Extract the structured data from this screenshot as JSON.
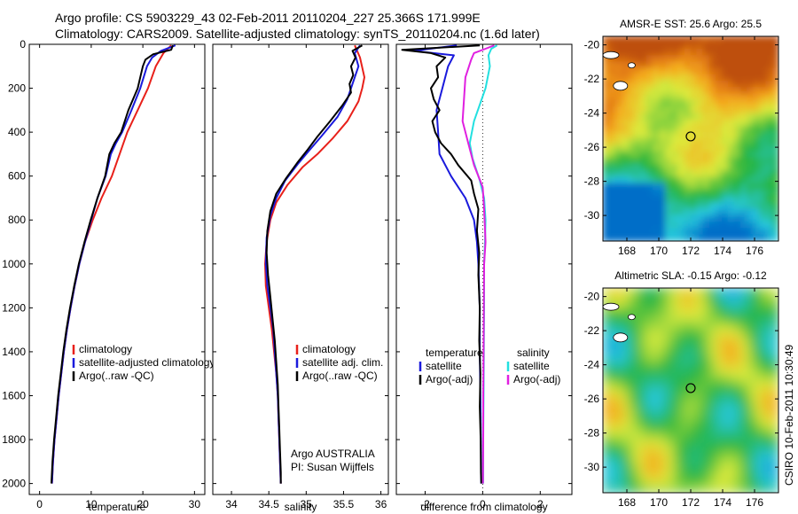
{
  "header": {
    "line1": "Argo profile: CS 5903229_43 02-Feb-2011 20110204_227 25.366S 171.999E",
    "line2": "Climatology: CARS2009. Satellite-adjusted climatology: synTS_20110204.nc (1.6d later)"
  },
  "footer": {
    "credit": "CSIRO 10-Feb-2011 10:30:49"
  },
  "colors": {
    "climatology": "#e8201a",
    "satellite": "#1a1adc",
    "argo": "#000000",
    "cyan": "#22e0e0",
    "magenta": "#e020e0"
  },
  "chart_data": [
    {
      "type": "line",
      "id": "temperature",
      "xlabel": "temperature",
      "xlim": [
        -2,
        32
      ],
      "ylim": [
        0,
        2050
      ],
      "xticks": [
        0,
        10,
        20,
        30
      ],
      "yticks": [
        0,
        200,
        400,
        600,
        800,
        1000,
        1200,
        1400,
        1600,
        1800,
        2000
      ],
      "y_reversed": true,
      "legend": [
        "climatology",
        "satellite-adjusted climatology",
        "Argo(..raw -QC)"
      ],
      "series": [
        {
          "name": "climatology",
          "color": "#e8201a",
          "points": [
            [
              25.5,
              5
            ],
            [
              24,
              40
            ],
            [
              22.5,
              100
            ],
            [
              21,
              200
            ],
            [
              19,
              300
            ],
            [
              17,
              400
            ],
            [
              15.5,
              500
            ],
            [
              14,
              600
            ],
            [
              12,
              700
            ],
            [
              10.3,
              800
            ],
            [
              8.8,
              900
            ],
            [
              7.7,
              1000
            ],
            [
              6.8,
              1100
            ],
            [
              6,
              1200
            ],
            [
              5.3,
              1300
            ],
            [
              4.7,
              1400
            ],
            [
              4.2,
              1500
            ],
            [
              3.7,
              1600
            ],
            [
              3.3,
              1700
            ],
            [
              2.9,
              1800
            ],
            [
              2.6,
              1900
            ],
            [
              2.4,
              2000
            ]
          ]
        },
        {
          "name": "satellite-adjusted climatology",
          "color": "#1a1adc",
          "points": [
            [
              26.3,
              5
            ],
            [
              23.5,
              30
            ],
            [
              21.8,
              60
            ],
            [
              20.8,
              100
            ],
            [
              19.5,
              200
            ],
            [
              17.8,
              300
            ],
            [
              16,
              400
            ],
            [
              14.8,
              450
            ],
            [
              13.8,
              500
            ],
            [
              12.8,
              600
            ],
            [
              11.2,
              700
            ],
            [
              10,
              800
            ],
            [
              8.8,
              900
            ],
            [
              7.7,
              1000
            ],
            [
              6.8,
              1100
            ],
            [
              6,
              1200
            ],
            [
              5.3,
              1300
            ],
            [
              4.7,
              1400
            ],
            [
              4.2,
              1500
            ],
            [
              3.7,
              1600
            ],
            [
              3.3,
              1700
            ],
            [
              2.9,
              1800
            ],
            [
              2.6,
              1900
            ],
            [
              2.4,
              2000
            ]
          ]
        },
        {
          "name": "Argo(..raw -QC)",
          "color": "#000000",
          "points": [
            [
              25.8,
              5
            ],
            [
              25.5,
              25
            ],
            [
              22,
              45
            ],
            [
              20.5,
              70
            ],
            [
              20,
              100
            ],
            [
              19,
              200
            ],
            [
              17.2,
              300
            ],
            [
              15.8,
              400
            ],
            [
              14.5,
              450
            ],
            [
              13.5,
              500
            ],
            [
              12.7,
              600
            ],
            [
              11.2,
              700
            ],
            [
              9.9,
              800
            ],
            [
              8.7,
              900
            ],
            [
              7.6,
              1000
            ],
            [
              6.7,
              1100
            ],
            [
              5.9,
              1200
            ],
            [
              5.2,
              1300
            ],
            [
              4.6,
              1400
            ],
            [
              4.1,
              1500
            ],
            [
              3.6,
              1600
            ],
            [
              3.2,
              1700
            ],
            [
              2.8,
              1800
            ],
            [
              2.5,
              1900
            ],
            [
              2.3,
              2000
            ]
          ]
        }
      ]
    },
    {
      "type": "line",
      "id": "salinity",
      "xlabel": "salinity",
      "xlim": [
        33.75,
        36.1
      ],
      "ylim": [
        0,
        2050
      ],
      "xticks": [
        34,
        34.5,
        35,
        35.5,
        36
      ],
      "y_reversed": true,
      "legend": [
        "climatology",
        "satellite adj. clim.",
        "Argo(..raw -QC)"
      ],
      "annotation": [
        "Argo AUSTRALIA",
        "PI: Susan Wijffels"
      ],
      "series": [
        {
          "name": "climatology",
          "color": "#e8201a",
          "points": [
            [
              35.65,
              5
            ],
            [
              35.72,
              60
            ],
            [
              35.78,
              150
            ],
            [
              35.75,
              200
            ],
            [
              35.7,
              260
            ],
            [
              35.55,
              350
            ],
            [
              35.35,
              430
            ],
            [
              35.15,
              500
            ],
            [
              34.95,
              560
            ],
            [
              34.75,
              640
            ],
            [
              34.6,
              720
            ],
            [
              34.52,
              800
            ],
            [
              34.47,
              900
            ],
            [
              34.45,
              1000
            ],
            [
              34.46,
              1100
            ],
            [
              34.5,
              1200
            ],
            [
              34.54,
              1300
            ],
            [
              34.57,
              1400
            ],
            [
              34.6,
              1500
            ],
            [
              34.62,
              1600
            ],
            [
              34.63,
              1700
            ],
            [
              34.64,
              1800
            ],
            [
              34.65,
              1900
            ],
            [
              34.66,
              2000
            ]
          ]
        },
        {
          "name": "satellite adj. clim.",
          "color": "#1a1adc",
          "points": [
            [
              35.72,
              5
            ],
            [
              35.65,
              40
            ],
            [
              35.7,
              100
            ],
            [
              35.65,
              150
            ],
            [
              35.55,
              250
            ],
            [
              35.42,
              330
            ],
            [
              35.2,
              420
            ],
            [
              35.05,
              480
            ],
            [
              34.9,
              540
            ],
            [
              34.72,
              620
            ],
            [
              34.6,
              700
            ],
            [
              34.52,
              780
            ],
            [
              34.47,
              880
            ],
            [
              34.46,
              1000
            ],
            [
              34.48,
              1100
            ],
            [
              34.52,
              1200
            ],
            [
              34.56,
              1300
            ],
            [
              34.58,
              1400
            ],
            [
              34.6,
              1500
            ],
            [
              34.62,
              1600
            ],
            [
              34.63,
              1700
            ],
            [
              34.64,
              1800
            ],
            [
              34.65,
              1900
            ],
            [
              34.66,
              2000
            ]
          ]
        },
        {
          "name": "Argo(..raw -QC)",
          "color": "#000000",
          "points": [
            [
              35.75,
              5
            ],
            [
              35.62,
              30
            ],
            [
              35.66,
              60
            ],
            [
              35.6,
              100
            ],
            [
              35.63,
              140
            ],
            [
              35.58,
              180
            ],
            [
              35.6,
              220
            ],
            [
              35.48,
              280
            ],
            [
              35.32,
              350
            ],
            [
              35.15,
              420
            ],
            [
              35.02,
              480
            ],
            [
              34.88,
              540
            ],
            [
              34.73,
              610
            ],
            [
              34.6,
              680
            ],
            [
              34.52,
              760
            ],
            [
              34.48,
              850
            ],
            [
              34.47,
              950
            ],
            [
              34.49,
              1050
            ],
            [
              34.52,
              1150
            ],
            [
              34.55,
              1250
            ],
            [
              34.58,
              1350
            ],
            [
              34.6,
              1450
            ],
            [
              34.62,
              1550
            ],
            [
              34.63,
              1650
            ],
            [
              34.64,
              1750
            ],
            [
              34.65,
              1850
            ],
            [
              34.66,
              1950
            ],
            [
              34.66,
              2000
            ]
          ]
        }
      ]
    },
    {
      "type": "line",
      "id": "difference",
      "xlabel": "difference from climatology",
      "xlim": [
        -3,
        3.1
      ],
      "ylim": [
        0,
        2050
      ],
      "xticks": [
        -2,
        0,
        2
      ],
      "y_reversed": true,
      "legend_left_title": "temperature",
      "legend_right_title": "salinity",
      "legend_left": [
        "satellite",
        "Argo(-adj)"
      ],
      "legend_right": [
        "satellite",
        "Argo(-adj)"
      ],
      "series": [
        {
          "name": "temperature satellite",
          "color": "#1a1adc",
          "points": [
            [
              -0.9,
              5
            ],
            [
              -2.4,
              30
            ],
            [
              -1,
              50
            ],
            [
              -1.2,
              100
            ],
            [
              -1.4,
              200
            ],
            [
              -1.6,
              300
            ],
            [
              -1.55,
              400
            ],
            [
              -1.5,
              500
            ],
            [
              -1.1,
              600
            ],
            [
              -0.6,
              700
            ],
            [
              -0.3,
              800
            ],
            [
              -0.2,
              900
            ],
            [
              -0.15,
              1000
            ],
            [
              -0.1,
              1200
            ],
            [
              -0.1,
              1400
            ],
            [
              -0.08,
              1600
            ],
            [
              -0.06,
              1800
            ],
            [
              -0.05,
              2000
            ]
          ]
        },
        {
          "name": "temperature Argo(-adj)",
          "color": "#000000",
          "points": [
            [
              -0.1,
              5
            ],
            [
              -2.8,
              25
            ],
            [
              -1.8,
              40
            ],
            [
              -1.3,
              60
            ],
            [
              -1.6,
              100
            ],
            [
              -1.55,
              150
            ],
            [
              -1.8,
              200
            ],
            [
              -1.7,
              250
            ],
            [
              -1.5,
              300
            ],
            [
              -1.75,
              350
            ],
            [
              -1.65,
              400
            ],
            [
              -1.45,
              450
            ],
            [
              -1.1,
              500
            ],
            [
              -0.85,
              550
            ],
            [
              -0.4,
              620
            ],
            [
              -0.3,
              680
            ],
            [
              -0.15,
              750
            ],
            [
              -0.2,
              850
            ],
            [
              -0.12,
              950
            ],
            [
              -0.15,
              1050
            ],
            [
              -0.1,
              1200
            ],
            [
              -0.12,
              1350
            ],
            [
              -0.08,
              1500
            ],
            [
              -0.1,
              1650
            ],
            [
              -0.07,
              1800
            ],
            [
              -0.06,
              1950
            ],
            [
              -0.05,
              2000
            ]
          ]
        },
        {
          "name": "salinity satellite",
          "color": "#22e0e0",
          "points": [
            [
              0.5,
              5
            ],
            [
              0.3,
              20
            ],
            [
              0.2,
              50
            ],
            [
              0.25,
              100
            ],
            [
              0.1,
              200
            ],
            [
              -0.3,
              350
            ],
            [
              -0.45,
              450
            ],
            [
              -0.35,
              520
            ],
            [
              -0.1,
              620
            ],
            [
              0.05,
              700
            ],
            [
              0.1,
              800
            ],
            [
              0.08,
              900
            ],
            [
              0.05,
              1000
            ],
            [
              0.05,
              1200
            ],
            [
              0.04,
              1400
            ],
            [
              0.03,
              1600
            ],
            [
              0.02,
              1800
            ],
            [
              0.02,
              2000
            ]
          ]
        },
        {
          "name": "salinity Argo(-adj)",
          "color": "#e020e0",
          "points": [
            [
              0.4,
              5
            ],
            [
              0.1,
              20
            ],
            [
              -0.3,
              40
            ],
            [
              -0.4,
              70
            ],
            [
              -0.6,
              150
            ],
            [
              -0.65,
              250
            ],
            [
              -0.7,
              350
            ],
            [
              -0.5,
              450
            ],
            [
              -0.3,
              550
            ],
            [
              0.0,
              650
            ],
            [
              0.05,
              750
            ],
            [
              0.1,
              900
            ],
            [
              0.05,
              1000
            ],
            [
              0.04,
              1200
            ],
            [
              0.03,
              1400
            ],
            [
              0.02,
              1600
            ],
            [
              0.02,
              1800
            ],
            [
              0.01,
              2000
            ]
          ]
        }
      ]
    },
    {
      "type": "heatmap",
      "id": "sst-map",
      "title": "AMSR-E SST: 25.6 Argo: 25.5",
      "xlim": [
        166.5,
        177.5
      ],
      "ylim": [
        -31.5,
        -19.5
      ],
      "xticks": [
        168,
        170,
        172,
        174,
        176
      ],
      "yticks": [
        -20,
        -22,
        -24,
        -26,
        -28,
        -30
      ],
      "marker": {
        "lon": 171.999,
        "lat": -25.366
      },
      "colormap": "jet-like"
    },
    {
      "type": "heatmap",
      "id": "sla-map",
      "title": "Altimetric SLA: -0.15 Argo: -0.12",
      "xlim": [
        166.5,
        177.5
      ],
      "ylim": [
        -31.5,
        -19.5
      ],
      "xticks": [
        168,
        170,
        172,
        174,
        176
      ],
      "yticks": [
        -20,
        -22,
        -24,
        -26,
        -28,
        -30
      ],
      "marker": {
        "lon": 171.999,
        "lat": -25.366
      },
      "colormap": "jet-like"
    }
  ]
}
